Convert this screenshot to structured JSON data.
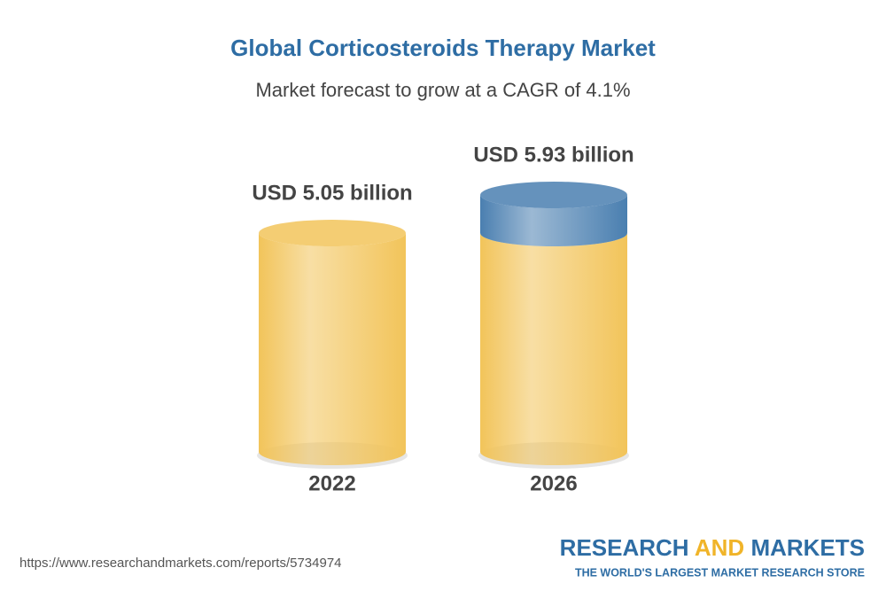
{
  "chart_data": {
    "type": "cylinder",
    "title": "Global Corticosteroids Therapy Market",
    "subtitle": "Market forecast to grow at a CAGR of 4.1%",
    "categories": [
      "2022",
      "2026"
    ],
    "values": [
      5.05,
      5.93
    ],
    "value_labels": [
      "USD 5.05 billion",
      "USD 5.93 billion"
    ],
    "color": "#f2c45a",
    "growth_color": "#4a7fb0"
  },
  "footer": {
    "url": "https://www.researchandmarkets.com/reports/5734974",
    "brand": [
      "RESEARCH",
      "AND",
      "MARKETS"
    ],
    "tagline": "THE WORLD'S LARGEST MARKET RESEARCH STORE"
  }
}
